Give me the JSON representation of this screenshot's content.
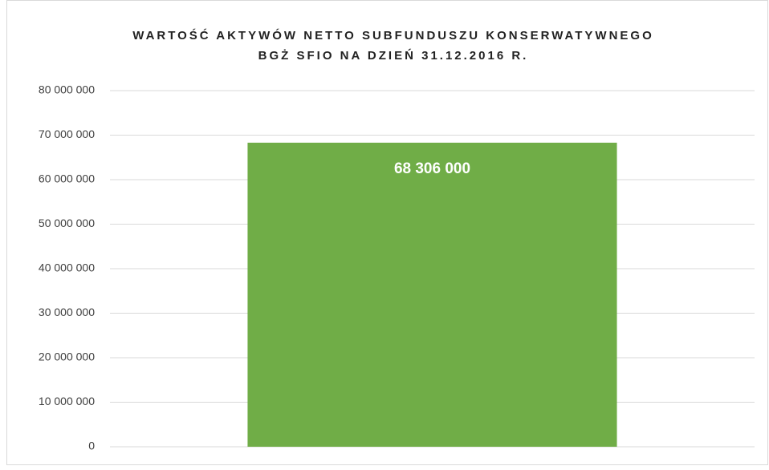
{
  "chart_data": {
    "type": "bar",
    "title": [
      "WARTOŚĆ AKTYWÓW NETTO SUBFUNDUSZU KONSERWATYWNEGO",
      "BGŻ SFIO NA DZIEŃ 31.12.2016 R."
    ],
    "categories": [
      null
    ],
    "values": [
      68306000
    ],
    "value_labels": [
      "68 306 000"
    ],
    "color": "#70ad47",
    "ylim": [
      0,
      80000000
    ],
    "yticks": [
      0,
      {
        "value": 10000000,
        "label": "10 000 000"
      },
      {
        "value": 20000000,
        "label": "20 000 000"
      },
      {
        "value": 30000000,
        "label": "30 000 000"
      },
      {
        "value": 40000000,
        "label": "40 000 000"
      },
      {
        "value": 50000000,
        "label": "50 000 000"
      },
      {
        "value": 60000000,
        "label": "60 000 000"
      },
      {
        "value": 70000000,
        "label": "70 000 000"
      },
      {
        "value": 80000000,
        "label": "80 000 000"
      }
    ],
    "grid": true
  }
}
